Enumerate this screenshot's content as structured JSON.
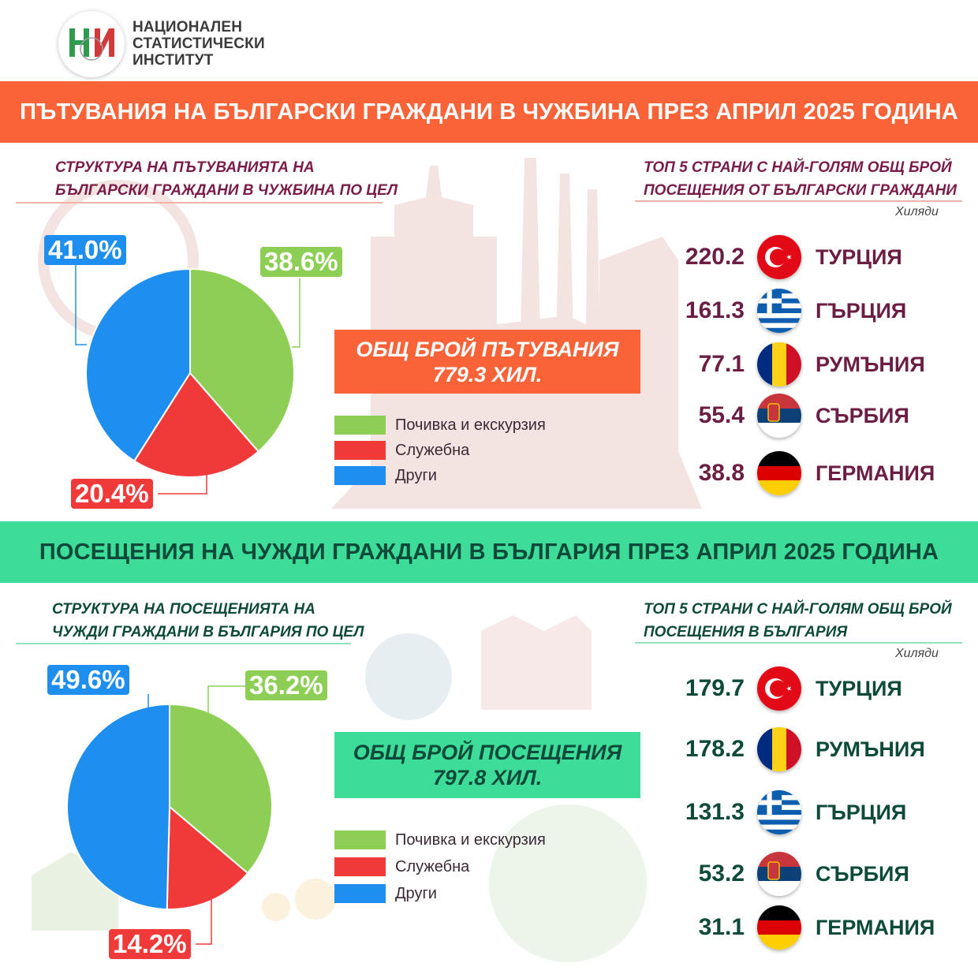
{
  "header": {
    "org_line1": "НАЦИОНАЛЕН",
    "org_line2": "СТАТИСТИЧЕСКИ",
    "org_line3": "ИНСТИТУТ"
  },
  "section1": {
    "banner": "ПЪТУВАНИЯ НА БЪЛГАРСКИ ГРАЖДАНИ В ЧУЖБИНА ПРЕЗ АПРИЛ 2025 ГОДИНА",
    "pie_title_line1": "СТРУКТУРА НА ПЪТУВАНИЯТА НА",
    "pie_title_line2": "БЪЛГАРСКИ ГРАЖДАНИ В ЧУЖБИНА ПО ЦЕЛ",
    "top_title_line1": "ТОП 5 СТРАНИ С НАЙ-ГОЛЯМ ОБЩ БРОЙ",
    "top_title_line2": "ПОСЕЩЕНИЯ ОТ БЪЛГАРСКИ ГРАЖДАНИ",
    "unit": "Хиляди",
    "total_line1": "ОБЩ БРОЙ ПЪТУВАНИЯ",
    "total_line2": "779.3 ХИЛ.",
    "pct_labels": {
      "green": "38.6%",
      "red": "20.4%",
      "blue": "41.0%"
    }
  },
  "section2": {
    "banner": "ПОСЕЩЕНИЯ НА ЧУЖДИ ГРАЖДАНИ В БЪЛГАРИЯ ПРЕЗ АПРИЛ 2025 ГОДИНА",
    "pie_title_line1": "СТРУКТУРА НА ПОСЕЩЕНИЯТА НА",
    "pie_title_line2": "ЧУЖДИ ГРАЖДАНИ В БЪЛГАРИЯ ПО ЦЕЛ",
    "top_title_line1": "ТОП 5 СТРАНИ С НАЙ-ГОЛЯМ ОБЩ БРОЙ",
    "top_title_line2": "ПОСЕЩЕНИЯ В БЪЛГАРИЯ",
    "unit": "Хиляди",
    "total_line1": "ОБЩ БРОЙ ПОСЕЩЕНИЯ",
    "total_line2": "797.8 ХИЛ.",
    "pct_labels": {
      "green": "36.2%",
      "red": "14.2%",
      "blue": "49.6%"
    }
  },
  "legend": [
    "Почивка и екскурзия",
    "Служебна",
    "Други"
  ],
  "colors": {
    "green": "#8dcf55",
    "red": "#f03a3a",
    "blue": "#1e8fee",
    "orange": "#fa6238",
    "mint": "#3ddc98"
  },
  "chart_data": [
    {
      "type": "pie",
      "categories": [
        "Почивка и екскурзия",
        "Служебна",
        "Други"
      ],
      "values": [
        38.6,
        20.4,
        41.0
      ]
    },
    {
      "type": "table",
      "columns": [
        "country",
        "value"
      ],
      "rows": [
        {
          "country": "ТУРЦИЯ",
          "value": "220.2",
          "flag": "turkey-flag-icon"
        },
        {
          "country": "ГЪРЦИЯ",
          "value": "161.3",
          "flag": "greece-flag-icon"
        },
        {
          "country": "РУМЪНИЯ",
          "value": "77.1",
          "flag": "romania-flag-icon"
        },
        {
          "country": "СЪРБИЯ",
          "value": "55.4",
          "flag": "serbia-flag-icon"
        },
        {
          "country": "ГЕРМАНИЯ",
          "value": "38.8",
          "flag": "germany-flag-icon"
        }
      ]
    },
    {
      "type": "pie",
      "categories": [
        "Почивка и екскурзия",
        "Служебна",
        "Други"
      ],
      "values": [
        36.2,
        14.2,
        49.6
      ]
    },
    {
      "type": "table",
      "columns": [
        "country",
        "value"
      ],
      "rows": [
        {
          "country": "ТУРЦИЯ",
          "value": "179.7",
          "flag": "turkey-flag-icon"
        },
        {
          "country": "РУМЪНИЯ",
          "value": "178.2",
          "flag": "romania-flag-icon"
        },
        {
          "country": "ГЪРЦИЯ",
          "value": "131.3",
          "flag": "greece-flag-icon"
        },
        {
          "country": "СЪРБИЯ",
          "value": "53.2",
          "flag": "serbia-flag-icon"
        },
        {
          "country": "ГЕРМАНИЯ",
          "value": "31.1",
          "flag": "germany-flag-icon"
        }
      ]
    }
  ]
}
